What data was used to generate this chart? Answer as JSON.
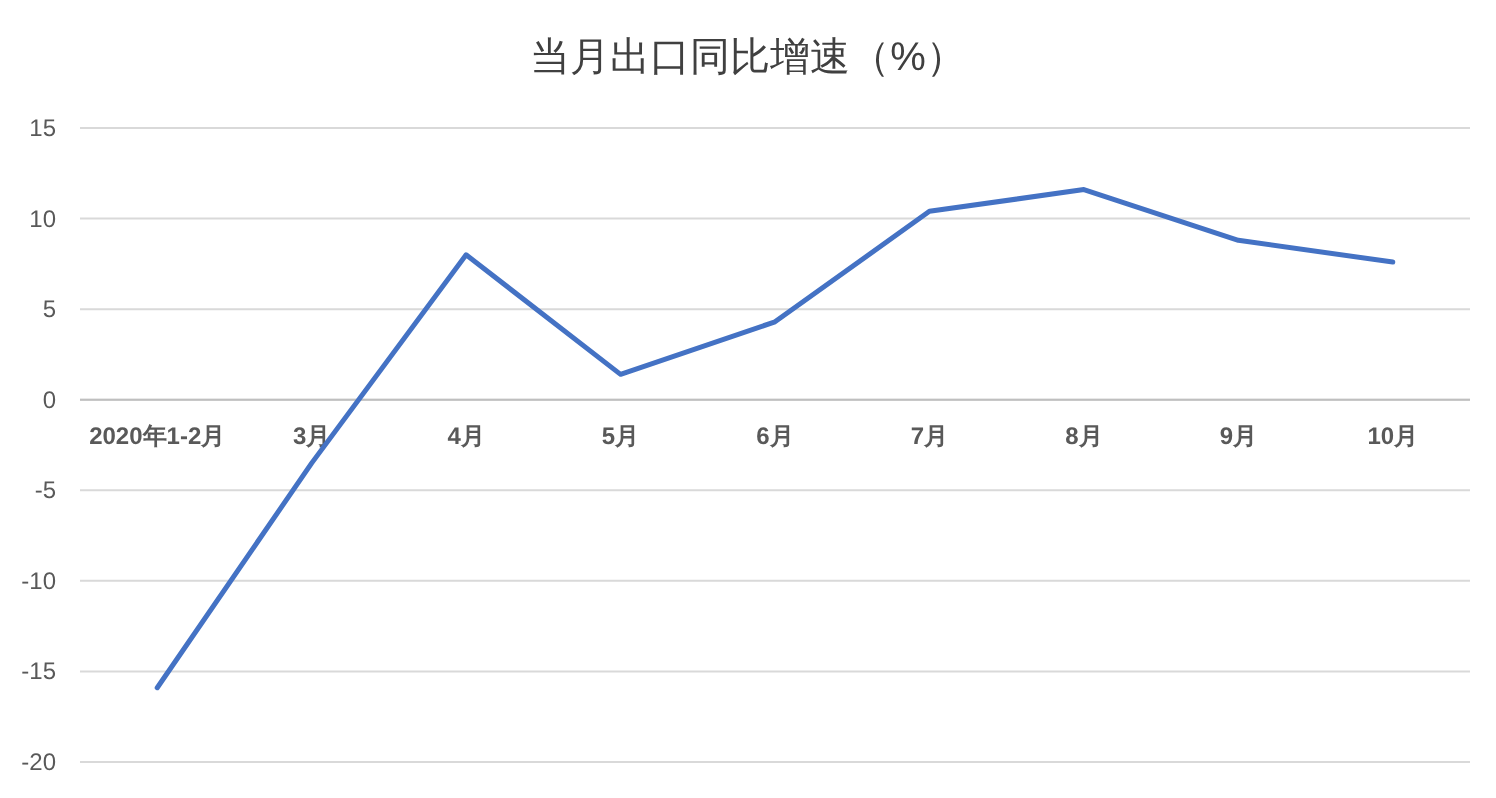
{
  "chart_data": {
    "type": "line",
    "title": "当月出口同比增速（%）",
    "categories": [
      "2020年1-2月",
      "3月",
      "4月",
      "5月",
      "6月",
      "7月",
      "8月",
      "9月",
      "10月"
    ],
    "series": [
      {
        "color": "#4472c4",
        "values": [
          -15.9,
          -3.5,
          8.0,
          1.4,
          4.3,
          10.4,
          11.6,
          8.8,
          7.6
        ]
      }
    ],
    "ylim": [
      -20,
      15
    ],
    "yticks": [
      -20,
      -15,
      -10,
      -5,
      0,
      5,
      10,
      15
    ],
    "grid": "y"
  }
}
